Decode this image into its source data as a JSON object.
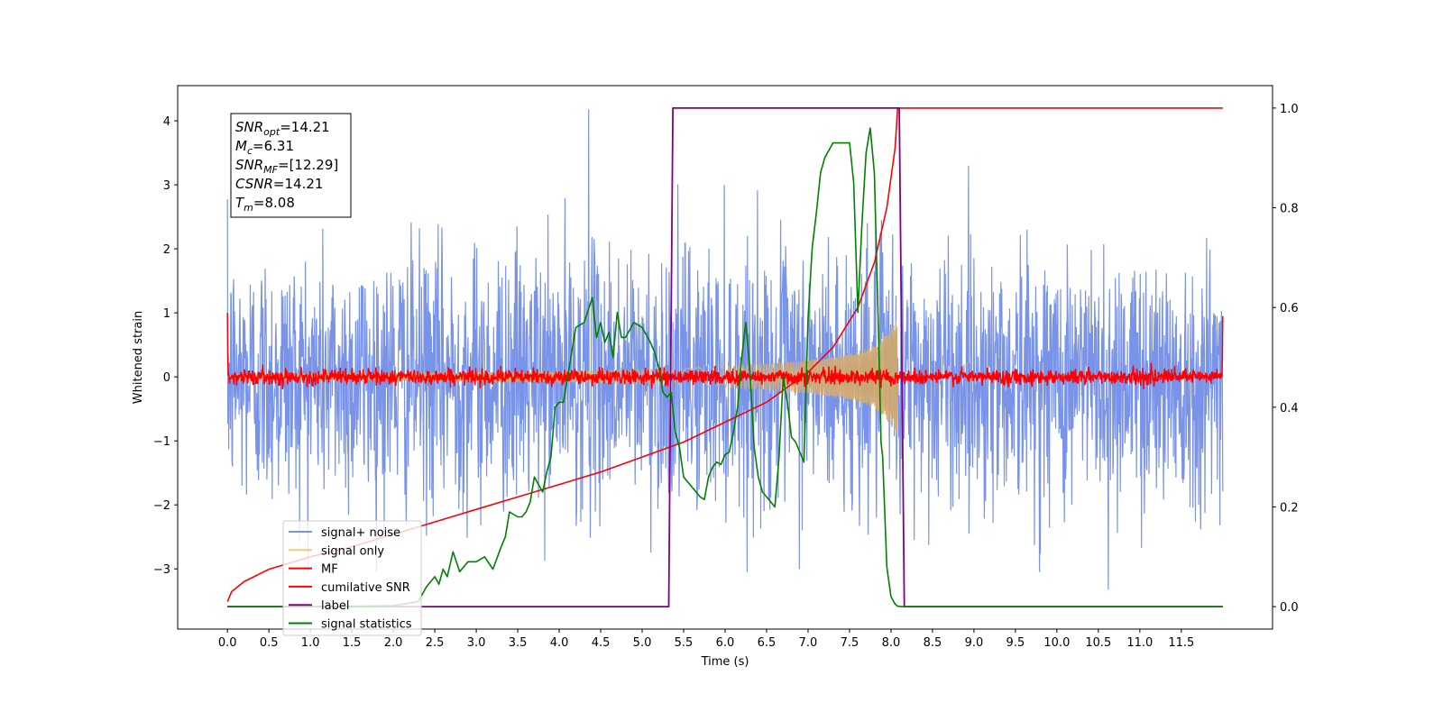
{
  "chart_data": {
    "type": "line",
    "xlabel": "Time (s)",
    "ylabel": "Whitened strain",
    "xlim": [
      -0.6,
      12.6
    ],
    "ylim": [
      -3.94,
      4.55
    ],
    "y2lim": [
      -0.045,
      1.045
    ],
    "x_ticks": [
      "0.0",
      "0.5",
      "1.0",
      "1.5",
      "2.0",
      "2.5",
      "3.0",
      "3.5",
      "4.0",
      "4.5",
      "5.0",
      "5.5",
      "6.0",
      "6.5",
      "7.0",
      "7.5",
      "8.0",
      "8.5",
      "9.0",
      "9.5",
      "10.0",
      "10.5",
      "11.0",
      "11.5"
    ],
    "y_ticks": [
      "-3",
      "-2",
      "-1",
      "0",
      "1",
      "2",
      "3",
      "4"
    ],
    "y2_ticks": [
      "0.0",
      "0.2",
      "0.4",
      "0.6",
      "0.8",
      "1.0"
    ],
    "info_box": [
      {
        "label": "SNR",
        "sub": "opt",
        "value": "=14.21"
      },
      {
        "label": "M",
        "sub": "c",
        "value": "=6.31"
      },
      {
        "label": "SNR",
        "sub": "MF",
        "value": "=[12.29]"
      },
      {
        "label": "CSNR",
        "sub": "",
        "value": "=14.21"
      },
      {
        "label": "T",
        "sub": "m",
        "value": "=8.08"
      }
    ],
    "legend": {
      "position": "lower-left",
      "entries": [
        {
          "name": "signal+ noise",
          "color": "#7893e8"
        },
        {
          "name": "signal only",
          "color": "#f5c97a"
        },
        {
          "name": "MF",
          "color": "#ff0000"
        },
        {
          "name": "cumilative SNR",
          "color": "#ff0000"
        },
        {
          "name": "label",
          "color": "#800080"
        },
        {
          "name": "signal statistics",
          "color": "#008000"
        }
      ]
    },
    "series": [
      {
        "name": "signal+ noise",
        "axis": "left",
        "color": "#7893e8",
        "x_range": [
          0.0,
          12.0
        ],
        "amplitude_sigma": 1.0,
        "peak_max": 4.18,
        "peak_min": -3.32
      },
      {
        "name": "signal only",
        "axis": "left",
        "color": "#f5c97a",
        "x_range": [
          0.0,
          8.08
        ],
        "envelope": {
          "x": [
            0.0,
            2.0,
            4.0,
            5.0,
            6.0,
            6.5,
            7.0,
            7.5,
            7.8,
            8.0,
            8.08
          ],
          "amp": [
            0.05,
            0.06,
            0.08,
            0.11,
            0.16,
            0.2,
            0.26,
            0.35,
            0.48,
            0.75,
            0.95
          ]
        }
      },
      {
        "name": "MF",
        "axis": "left",
        "color": "#ff0000",
        "x_range": [
          0.0,
          12.0
        ],
        "amplitude_sigma": 0.06,
        "start_value": 1.0,
        "end_value": 0.95
      },
      {
        "name": "cumilative SNR",
        "axis": "right",
        "color": "#ff0000",
        "x": [
          0.0,
          0.05,
          0.2,
          0.5,
          1.0,
          1.5,
          2.0,
          2.5,
          3.0,
          3.5,
          4.0,
          4.5,
          5.0,
          5.5,
          6.0,
          6.5,
          7.0,
          7.3,
          7.6,
          7.8,
          7.95,
          8.05,
          8.08,
          12.0
        ],
        "y": [
          0.01,
          0.03,
          0.05,
          0.075,
          0.1,
          0.12,
          0.145,
          0.17,
          0.195,
          0.22,
          0.245,
          0.27,
          0.3,
          0.33,
          0.37,
          0.41,
          0.47,
          0.52,
          0.6,
          0.69,
          0.8,
          0.92,
          1.0,
          1.0
        ]
      },
      {
        "name": "label",
        "axis": "right",
        "color": "#800080",
        "x": [
          0.0,
          5.32,
          5.37,
          8.1,
          8.16,
          12.0
        ],
        "y": [
          0.0,
          0.0,
          1.0,
          1.0,
          0.0,
          0.0
        ]
      },
      {
        "name": "signal statistics",
        "axis": "right",
        "color": "#008000",
        "x": [
          0.0,
          1.0,
          2.0,
          2.3,
          2.4,
          2.5,
          2.55,
          2.6,
          2.65,
          2.72,
          2.8,
          2.85,
          2.9,
          3.0,
          3.1,
          3.2,
          3.3,
          3.35,
          3.4,
          3.5,
          3.55,
          3.6,
          3.65,
          3.7,
          3.8,
          3.85,
          3.9,
          3.95,
          4.0,
          4.05,
          4.12,
          4.2,
          4.3,
          4.4,
          4.45,
          4.5,
          4.55,
          4.6,
          4.65,
          4.7,
          4.75,
          4.8,
          4.9,
          5.0,
          5.1,
          5.15,
          5.2,
          5.25,
          5.3,
          5.35,
          5.4,
          5.45,
          5.5,
          5.55,
          5.6,
          5.65,
          5.7,
          5.75,
          5.8,
          5.85,
          5.9,
          5.95,
          6.0,
          6.05,
          6.1,
          6.15,
          6.2,
          6.25,
          6.3,
          6.35,
          6.4,
          6.45,
          6.5,
          6.55,
          6.6,
          6.65,
          6.7,
          6.75,
          6.8,
          6.85,
          6.9,
          6.95,
          7.0,
          7.05,
          7.1,
          7.15,
          7.2,
          7.3,
          7.4,
          7.5,
          7.55,
          7.6,
          7.65,
          7.7,
          7.75,
          7.8,
          7.85,
          7.88,
          7.9,
          7.95,
          8.0,
          8.05,
          8.08,
          8.12,
          12.0
        ],
        "y": [
          0.0,
          0.0,
          0.002,
          0.01,
          0.04,
          0.06,
          0.045,
          0.075,
          0.06,
          0.11,
          0.07,
          0.08,
          0.09,
          0.09,
          0.1,
          0.075,
          0.12,
          0.14,
          0.19,
          0.18,
          0.18,
          0.19,
          0.21,
          0.26,
          0.23,
          0.27,
          0.3,
          0.4,
          0.41,
          0.41,
          0.48,
          0.56,
          0.57,
          0.62,
          0.54,
          0.57,
          0.53,
          0.55,
          0.5,
          0.59,
          0.54,
          0.54,
          0.57,
          0.56,
          0.53,
          0.51,
          0.48,
          0.43,
          0.42,
          0.43,
          0.35,
          0.32,
          0.26,
          0.25,
          0.24,
          0.23,
          0.22,
          0.215,
          0.26,
          0.28,
          0.29,
          0.285,
          0.305,
          0.31,
          0.35,
          0.4,
          0.5,
          0.57,
          0.47,
          0.32,
          0.26,
          0.23,
          0.22,
          0.21,
          0.2,
          0.3,
          0.46,
          0.41,
          0.34,
          0.33,
          0.31,
          0.29,
          0.58,
          0.72,
          0.79,
          0.87,
          0.9,
          0.93,
          0.93,
          0.93,
          0.85,
          0.59,
          0.77,
          0.91,
          0.96,
          0.87,
          0.55,
          0.33,
          0.3,
          0.08,
          0.02,
          0.005,
          0.001,
          0.0,
          0.0
        ]
      }
    ]
  }
}
